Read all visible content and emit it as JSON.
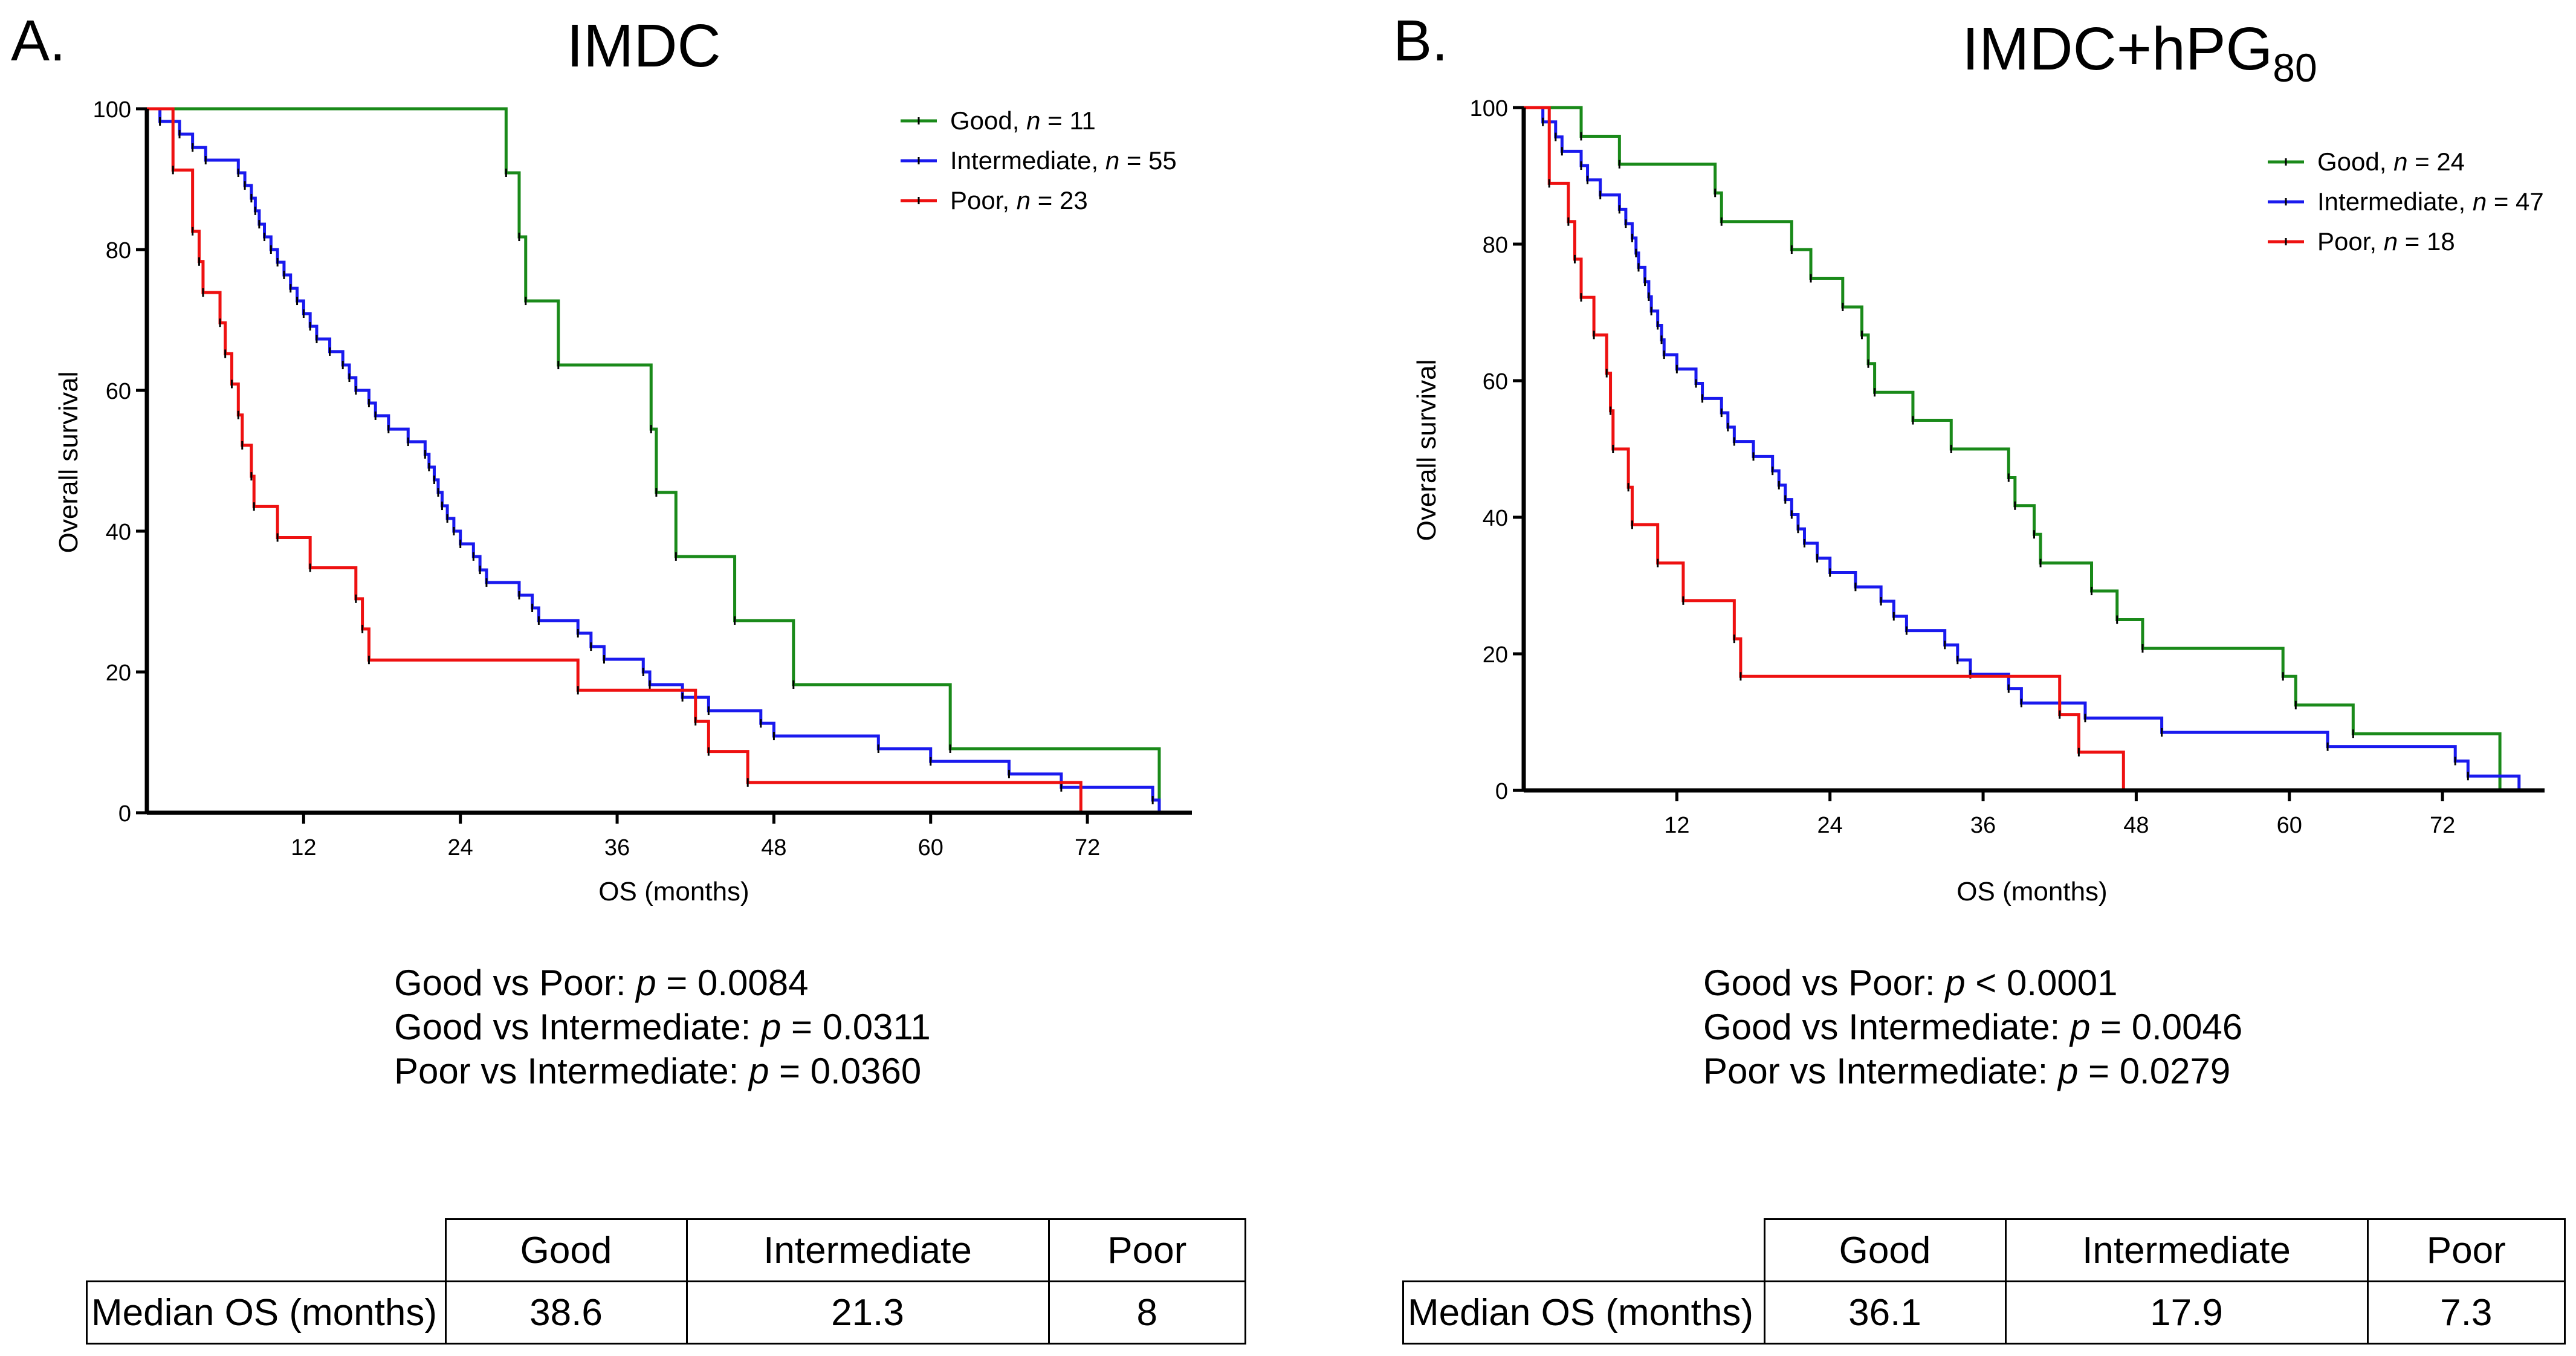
{
  "chart_data": [
    {
      "panel_letter": "A.",
      "title": "IMDC",
      "type": "line",
      "subtype": "kaplan-meier step",
      "xlabel": "OS (months)",
      "ylabel": "Overall survival",
      "xlim": [
        0,
        80
      ],
      "ylim": [
        0,
        100
      ],
      "xticks": [
        12,
        24,
        36,
        48,
        60,
        72
      ],
      "yticks": [
        0,
        20,
        40,
        60,
        80,
        100
      ],
      "legend_position": "top-right",
      "series": [
        {
          "name": "Good",
          "n_label": "n = 11",
          "color": "#1a8a1a",
          "steps": [
            [
              0,
              100
            ],
            [
              27.5,
              90.9
            ],
            [
              28.5,
              81.8
            ],
            [
              29,
              72.7
            ],
            [
              31.5,
              63.6
            ],
            [
              38.6,
              54.5
            ],
            [
              39,
              45.5
            ],
            [
              40.5,
              36.4
            ],
            [
              45,
              27.3
            ],
            [
              49.5,
              18.2
            ],
            [
              61.5,
              9.1
            ],
            [
              77.5,
              0
            ]
          ]
        },
        {
          "name": "Intermediate",
          "n_label": "n = 55",
          "color": "#1a1aee",
          "steps": [
            [
              0,
              100
            ],
            [
              1,
              98.2
            ],
            [
              2.5,
              96.4
            ],
            [
              3.5,
              94.5
            ],
            [
              4.5,
              92.7
            ],
            [
              7,
              90.9
            ],
            [
              7.5,
              89.1
            ],
            [
              8,
              87.3
            ],
            [
              8.3,
              85.5
            ],
            [
              8.6,
              83.6
            ],
            [
              9,
              81.8
            ],
            [
              9.5,
              80
            ],
            [
              10,
              78.2
            ],
            [
              10.5,
              76.4
            ],
            [
              11,
              74.5
            ],
            [
              11.5,
              72.7
            ],
            [
              12,
              70.9
            ],
            [
              12.5,
              69.1
            ],
            [
              13,
              67.3
            ],
            [
              14,
              65.5
            ],
            [
              15,
              63.6
            ],
            [
              15.5,
              61.8
            ],
            [
              16,
              60
            ],
            [
              17,
              58.2
            ],
            [
              17.5,
              56.4
            ],
            [
              18.5,
              54.5
            ],
            [
              20,
              52.7
            ],
            [
              21.3,
              50.9
            ],
            [
              21.6,
              49.1
            ],
            [
              22,
              47.3
            ],
            [
              22.3,
              45.5
            ],
            [
              22.6,
              43.6
            ],
            [
              23,
              41.8
            ],
            [
              23.5,
              40
            ],
            [
              24,
              38.2
            ],
            [
              25,
              36.4
            ],
            [
              25.5,
              34.5
            ],
            [
              26,
              32.7
            ],
            [
              28.5,
              30.9
            ],
            [
              29.5,
              29.1
            ],
            [
              30,
              27.3
            ],
            [
              33,
              25.5
            ],
            [
              34,
              23.6
            ],
            [
              35,
              21.8
            ],
            [
              38,
              20
            ],
            [
              38.5,
              18.2
            ],
            [
              41,
              16.4
            ],
            [
              43,
              14.5
            ],
            [
              47,
              12.7
            ],
            [
              48,
              10.9
            ],
            [
              56,
              9.1
            ],
            [
              60,
              7.3
            ],
            [
              66,
              5.5
            ],
            [
              70,
              3.6
            ],
            [
              77,
              1.8
            ],
            [
              77.5,
              0
            ]
          ]
        },
        {
          "name": "Poor",
          "n_label": "n = 23",
          "color": "#ee1111",
          "steps": [
            [
              0,
              100
            ],
            [
              2,
              91.3
            ],
            [
              3.5,
              82.6
            ],
            [
              4,
              78.3
            ],
            [
              4.3,
              73.9
            ],
            [
              5.6,
              69.6
            ],
            [
              6,
              65.2
            ],
            [
              6.5,
              60.9
            ],
            [
              7,
              56.5
            ],
            [
              7.3,
              52.2
            ],
            [
              8,
              47.8
            ],
            [
              8.2,
              43.5
            ],
            [
              10,
              39.1
            ],
            [
              12.5,
              34.8
            ],
            [
              16,
              30.4
            ],
            [
              16.5,
              26.1
            ],
            [
              17,
              21.7
            ],
            [
              33,
              17.4
            ],
            [
              42,
              13
            ],
            [
              43,
              8.7
            ],
            [
              46,
              4.3
            ],
            [
              71.5,
              0
            ]
          ]
        }
      ],
      "pvalues": [
        {
          "comparison": "Good vs Poor: ",
          "p": "p",
          "value": " = 0.0084"
        },
        {
          "comparison": "Good vs Intermediate: ",
          "p": "p",
          "value": " = 0.0311"
        },
        {
          "comparison": "Poor vs Intermediate: ",
          "p": "p",
          "value": " = 0.0360"
        }
      ],
      "table": {
        "headers": [
          "Good",
          "Intermediate",
          "Poor"
        ],
        "row_label": "Median OS (months)",
        "values": [
          "38.6",
          "21.3",
          "8"
        ]
      }
    },
    {
      "panel_letter": "B.",
      "title": "IMDC+hPG",
      "title_subscript": "80",
      "type": "line",
      "subtype": "kaplan-meier step",
      "xlabel": "OS (months)",
      "ylabel": "Overall survival",
      "xlim": [
        0,
        80
      ],
      "ylim": [
        0,
        100
      ],
      "xticks": [
        12,
        24,
        36,
        48,
        60,
        72
      ],
      "yticks": [
        0,
        20,
        40,
        60,
        80,
        100
      ],
      "legend_position": "top-right",
      "series": [
        {
          "name": "Good",
          "n_label": "n = 24",
          "color": "#1a8a1a",
          "steps": [
            [
              0,
              100
            ],
            [
              4.5,
              95.8
            ],
            [
              7.5,
              91.7
            ],
            [
              15,
              87.5
            ],
            [
              15.5,
              83.3
            ],
            [
              21,
              79.2
            ],
            [
              22.5,
              75
            ],
            [
              25,
              70.8
            ],
            [
              26.5,
              66.7
            ],
            [
              27,
              62.5
            ],
            [
              27.5,
              58.3
            ],
            [
              30.5,
              54.2
            ],
            [
              33.5,
              50
            ],
            [
              38,
              45.8
            ],
            [
              38.5,
              41.7
            ],
            [
              40,
              37.5
            ],
            [
              40.5,
              33.3
            ],
            [
              44.5,
              29.2
            ],
            [
              46.5,
              25
            ],
            [
              48.5,
              20.8
            ],
            [
              59.5,
              16.7
            ],
            [
              60.5,
              12.5
            ],
            [
              65,
              8.3
            ],
            [
              76.5,
              0
            ]
          ]
        },
        {
          "name": "Intermediate",
          "n_label": "n = 47",
          "color": "#1a1aee",
          "steps": [
            [
              0,
              100
            ],
            [
              1.5,
              97.9
            ],
            [
              2.5,
              95.7
            ],
            [
              3,
              93.6
            ],
            [
              4.5,
              91.5
            ],
            [
              5,
              89.4
            ],
            [
              6,
              87.2
            ],
            [
              7.5,
              85.1
            ],
            [
              8,
              83
            ],
            [
              8.5,
              80.9
            ],
            [
              8.8,
              78.7
            ],
            [
              9,
              76.6
            ],
            [
              9.5,
              74.5
            ],
            [
              9.8,
              72.3
            ],
            [
              10,
              70.2
            ],
            [
              10.5,
              68.1
            ],
            [
              10.8,
              66
            ],
            [
              11,
              63.8
            ],
            [
              12,
              61.7
            ],
            [
              13.5,
              59.6
            ],
            [
              14,
              57.4
            ],
            [
              15.5,
              55.3
            ],
            [
              16,
              53.2
            ],
            [
              16.5,
              51.1
            ],
            [
              18,
              48.9
            ],
            [
              19.5,
              46.8
            ],
            [
              20,
              44.7
            ],
            [
              20.5,
              42.6
            ],
            [
              21,
              40.4
            ],
            [
              21.5,
              38.3
            ],
            [
              22,
              36.2
            ],
            [
              23,
              34
            ],
            [
              24,
              31.9
            ],
            [
              26,
              29.8
            ],
            [
              28,
              27.7
            ],
            [
              29,
              25.5
            ],
            [
              30,
              23.4
            ],
            [
              33,
              21.3
            ],
            [
              34,
              19.1
            ],
            [
              35,
              17
            ],
            [
              38,
              14.9
            ],
            [
              39,
              12.8
            ],
            [
              44,
              10.6
            ],
            [
              50,
              8.5
            ],
            [
              63,
              6.4
            ],
            [
              73,
              4.3
            ],
            [
              74,
              2.1
            ],
            [
              78,
              0
            ]
          ]
        },
        {
          "name": "Poor",
          "n_label": "n = 18",
          "color": "#ee1111",
          "steps": [
            [
              0,
              100
            ],
            [
              2,
              88.9
            ],
            [
              3.5,
              83.3
            ],
            [
              4,
              77.8
            ],
            [
              4.5,
              72.2
            ],
            [
              5.5,
              66.7
            ],
            [
              6.5,
              61.1
            ],
            [
              6.8,
              55.6
            ],
            [
              7,
              50
            ],
            [
              8.2,
              44.4
            ],
            [
              8.5,
              38.9
            ],
            [
              10.5,
              33.3
            ],
            [
              12.5,
              27.8
            ],
            [
              16.5,
              22.2
            ],
            [
              17,
              16.7
            ],
            [
              42,
              11.1
            ],
            [
              43.5,
              5.6
            ],
            [
              47,
              0
            ]
          ]
        }
      ],
      "pvalues": [
        {
          "comparison": "Good vs Poor: ",
          "p": "p",
          "value": " < 0.0001"
        },
        {
          "comparison": "Good vs Intermediate: ",
          "p": "p",
          "value": " = 0.0046"
        },
        {
          "comparison": "Poor vs Intermediate: ",
          "p": "p",
          "value": " = 0.0279"
        }
      ],
      "table": {
        "headers": [
          "Good",
          "Intermediate",
          "Poor"
        ],
        "row_label": "Median OS (months)",
        "values": [
          "36.1",
          "17.9",
          "7.3"
        ]
      }
    }
  ]
}
